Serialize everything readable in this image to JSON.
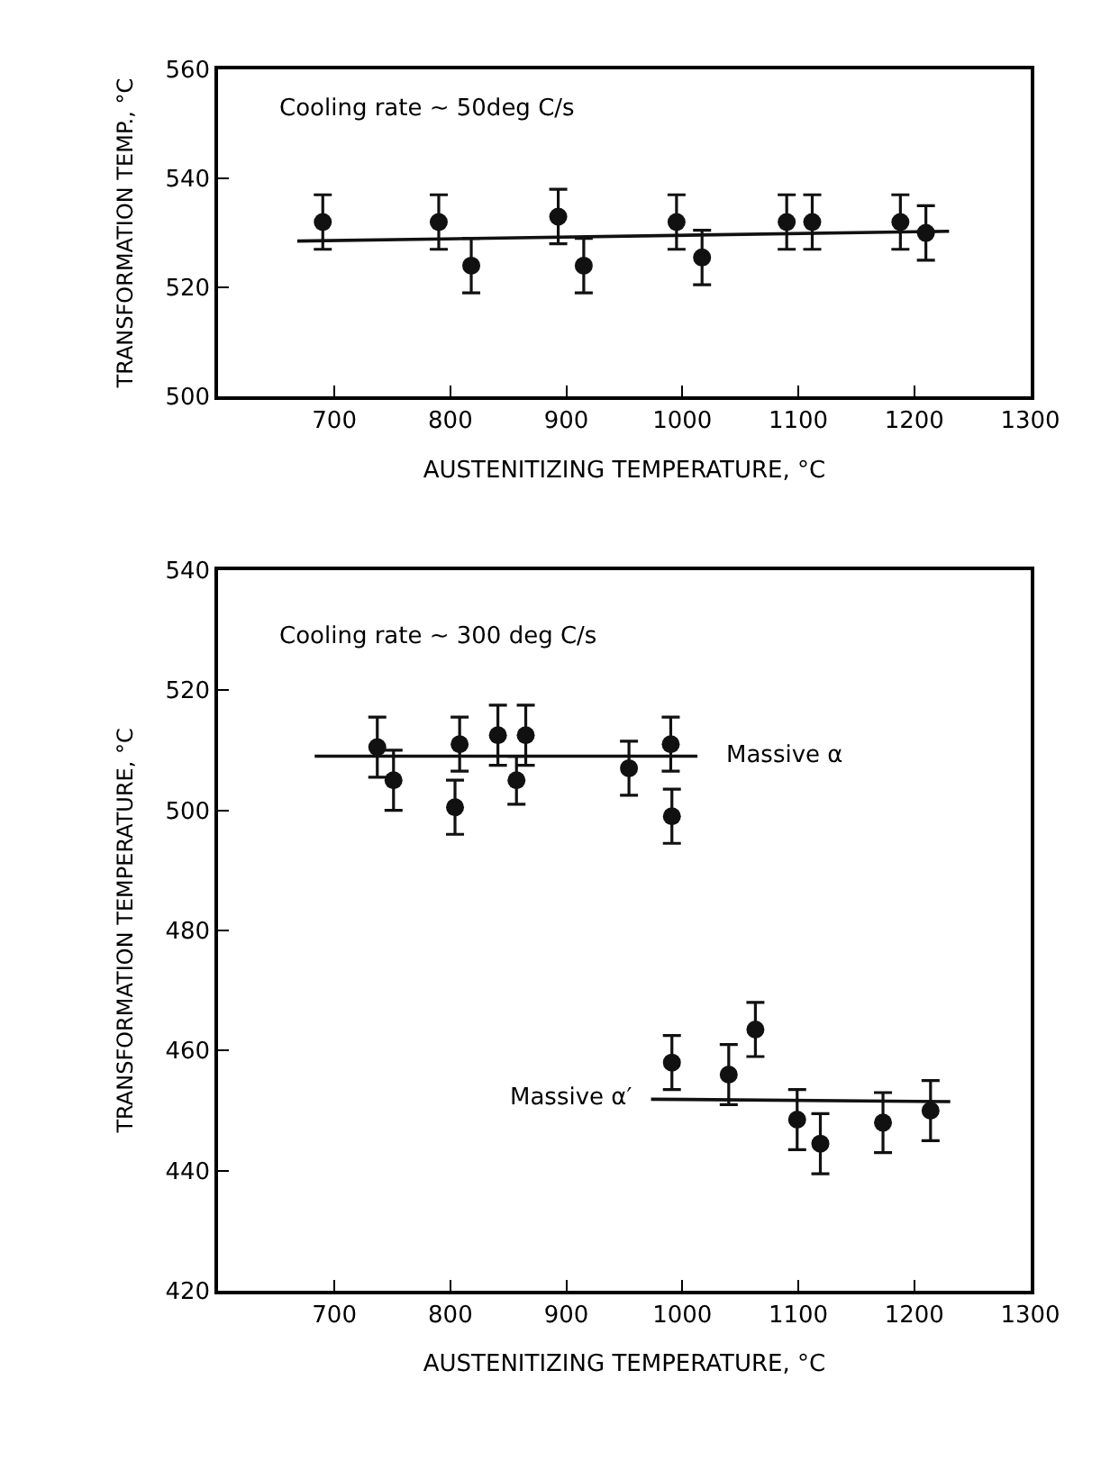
{
  "chart_data": [
    {
      "type": "scatter",
      "xlabel": "AUSTENITIZING TEMPERATURE, °C",
      "ylabel": "TRANSFORMATION TEMP., °C",
      "annotations": [
        "Cooling rate ∼ 50deg C/s"
      ],
      "xlim": [
        600,
        1300
      ],
      "xticks": [
        700,
        800,
        900,
        1000,
        1100,
        1200,
        1300
      ],
      "ylim": [
        500,
        560
      ],
      "yticks": [
        500,
        520,
        540,
        560
      ],
      "series": [
        {
          "color": "#111111",
          "x": [
            690,
            790,
            818,
            893,
            915,
            995,
            1017,
            1090,
            1112,
            1188,
            1210
          ],
          "values": [
            532,
            532,
            524,
            533,
            524,
            532,
            525.5,
            532,
            532,
            532,
            530
          ],
          "marker": "circle",
          "errors": [
            5,
            5,
            5,
            5,
            5,
            5,
            5,
            5,
            5,
            5,
            5
          ]
        },
        {
          "type": "line",
          "color": "#111111",
          "x": [
            668,
            1230
          ],
          "values": [
            528.5,
            530.3
          ]
        }
      ]
    },
    {
      "type": "scatter",
      "xlabel": "AUSTENITIZING TEMPERATURE, °C",
      "ylabel": "TRANSFORMATION TEMPERATURE, °C",
      "annotations": [
        "Cooling rate ∼ 300 deg C/s",
        {
          "text": "Massive α",
          "x": 1013,
          "y": 509
        },
        {
          "text": "Massive α′",
          "x": 973,
          "y": 452
        }
      ],
      "xlim": [
        600,
        1300
      ],
      "xticks": [
        700,
        800,
        900,
        1000,
        1100,
        1200,
        1300
      ],
      "ylim": [
        420,
        540
      ],
      "yticks": [
        420,
        440,
        460,
        480,
        500,
        520,
        540
      ],
      "series": [
        {
          "color": "#111111",
          "x": [
            737,
            751,
            804,
            808,
            841,
            857,
            865,
            954,
            990,
            991
          ],
          "values": [
            510.5,
            505,
            500.5,
            511,
            512.5,
            505,
            512.5,
            507,
            511,
            499
          ],
          "marker": "circle",
          "errors": [
            5,
            5,
            4.5,
            4.5,
            5,
            4,
            5,
            4.5,
            4.5,
            4.5
          ]
        },
        {
          "color": "#111111",
          "x": [
            991,
            1040,
            1063,
            1099,
            1119,
            1173,
            1214
          ],
          "values": [
            458,
            456,
            463.5,
            448.5,
            444.5,
            448,
            450
          ],
          "marker": "circle",
          "errors": [
            4.5,
            5,
            4.5,
            5,
            5,
            5,
            5
          ]
        },
        {
          "type": "line",
          "color": "#111111",
          "x": [
            683,
            1013
          ],
          "values": [
            509,
            509
          ]
        },
        {
          "type": "line",
          "color": "#111111",
          "x": [
            973,
            1231
          ],
          "values": [
            451.9,
            451.5
          ]
        }
      ]
    }
  ]
}
